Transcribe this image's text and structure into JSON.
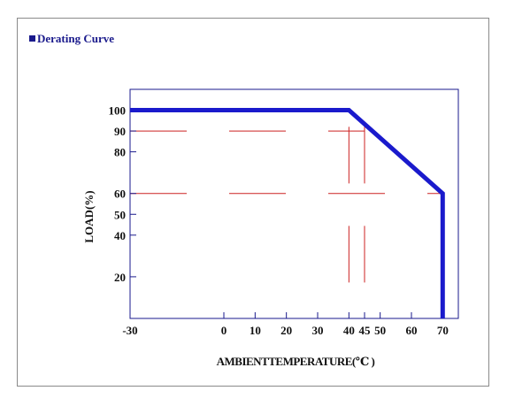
{
  "panel": {
    "title_bullet": "■",
    "title": "Derating Curve"
  },
  "chart_data": {
    "type": "line",
    "xlabel": "AMBIENTTEMPERATURE(℃ )",
    "ylabel": "LOAD(%)",
    "x_ticks": [
      "-30",
      "0",
      "10",
      "20",
      "30",
      "40",
      "45",
      "50",
      "60",
      "70"
    ],
    "y_ticks": [
      "100",
      "90",
      "80",
      "60",
      "50",
      "40",
      "20"
    ],
    "xlim": [
      -30,
      75
    ],
    "ylim": [
      0,
      110
    ],
    "series": [
      {
        "x": [
          -30,
          40,
          70,
          70
        ],
        "y": [
          100,
          100,
          60,
          0
        ]
      }
    ],
    "reference_lines": {
      "vertical": [
        40,
        45
      ],
      "horizontal": [
        90,
        60
      ]
    },
    "colors": {
      "curve": "#1a1acc",
      "reference": "#cc2222",
      "axes": "#1a1a8c"
    }
  }
}
